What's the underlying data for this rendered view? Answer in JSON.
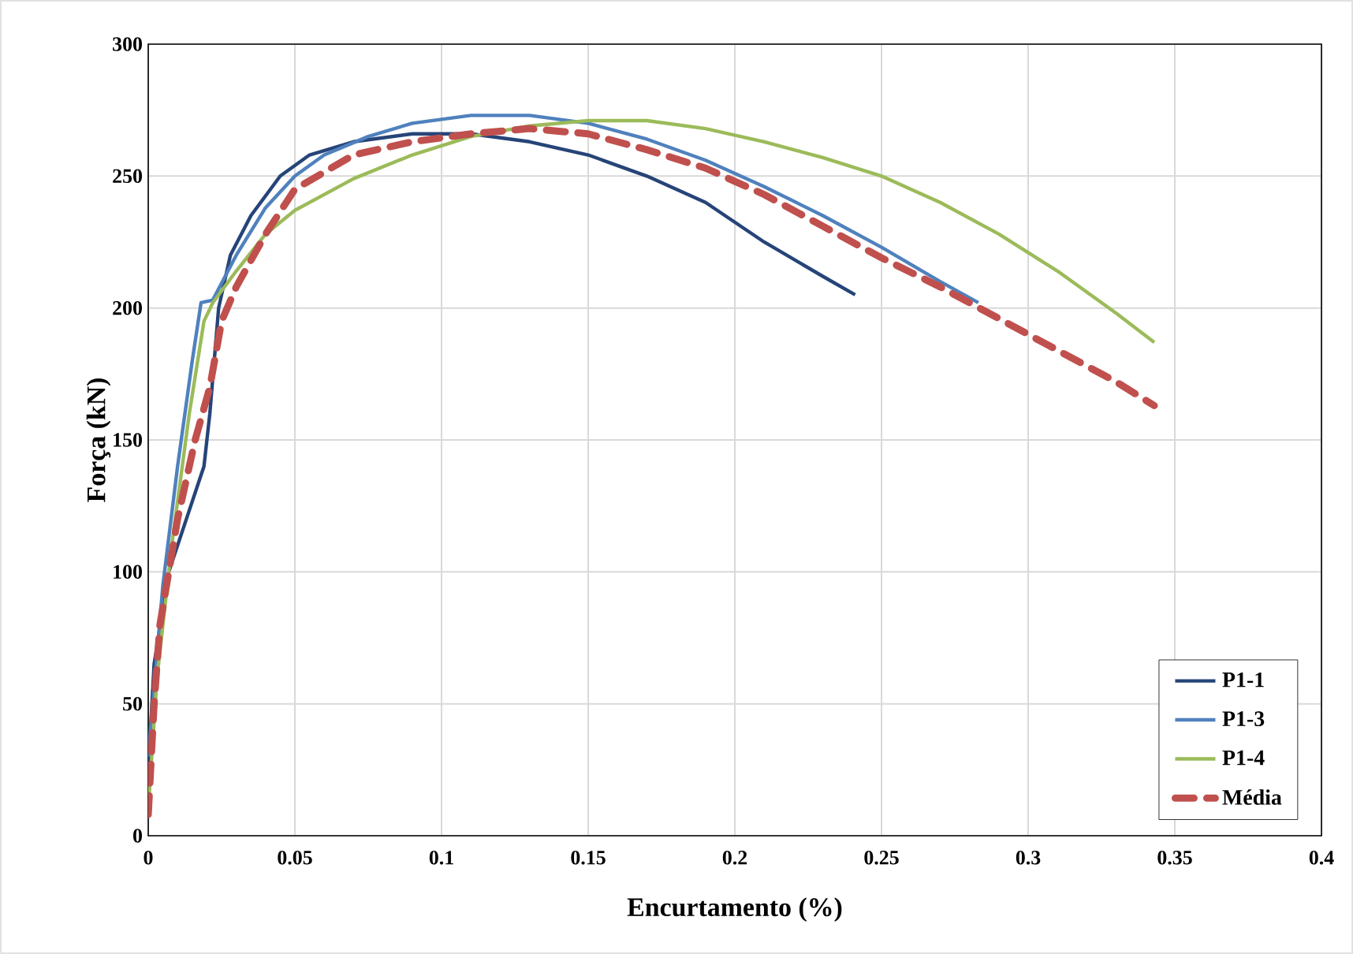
{
  "chart_data": {
    "type": "line",
    "xlabel": "Encurtamento (%)",
    "ylabel": "Força (kN)",
    "xlim": [
      0,
      0.4
    ],
    "ylim": [
      0,
      300
    ],
    "xticks": [
      0,
      0.05,
      0.1,
      0.15,
      0.2,
      0.25,
      0.3,
      0.35,
      0.4
    ],
    "yticks": [
      0,
      50,
      100,
      150,
      200,
      250,
      300
    ],
    "grid": true,
    "legend": "bottom right",
    "marker": "none",
    "series": [
      {
        "name": "P1-1",
        "color": "#264478",
        "line_style": "solid",
        "x": [
          0,
          0.002,
          0.007,
          0.013,
          0.019,
          0.021,
          0.024,
          0.028,
          0.035,
          0.045,
          0.055,
          0.07,
          0.09,
          0.11,
          0.13,
          0.15,
          0.17,
          0.19,
          0.21,
          0.23,
          0.241
        ],
        "values": [
          25,
          65,
          100,
          120,
          140,
          160,
          200,
          220,
          235,
          250,
          258,
          263,
          266,
          266,
          263,
          258,
          250,
          240,
          225,
          212,
          205
        ]
      },
      {
        "name": "P1-3",
        "color": "#4f81bd",
        "line_style": "solid",
        "x": [
          0,
          0.005,
          0.01,
          0.015,
          0.018,
          0.022,
          0.03,
          0.04,
          0.05,
          0.06,
          0.075,
          0.09,
          0.11,
          0.13,
          0.15,
          0.17,
          0.19,
          0.21,
          0.23,
          0.25,
          0.27,
          0.283
        ],
        "values": [
          30,
          95,
          140,
          180,
          202,
          203,
          220,
          238,
          250,
          258,
          265,
          270,
          273,
          273,
          270,
          264,
          256,
          246,
          235,
          223,
          210,
          202
        ]
      },
      {
        "name": "P1-4",
        "color": "#9bbb59",
        "line_style": "solid",
        "x": [
          0,
          0.003,
          0.008,
          0.014,
          0.019,
          0.022,
          0.03,
          0.04,
          0.05,
          0.07,
          0.09,
          0.11,
          0.13,
          0.15,
          0.17,
          0.19,
          0.21,
          0.23,
          0.25,
          0.27,
          0.29,
          0.31,
          0.33,
          0.343
        ],
        "values": [
          10,
          60,
          110,
          160,
          195,
          202,
          214,
          228,
          237,
          249,
          258,
          265,
          269,
          271,
          271,
          268,
          263,
          257,
          250,
          240,
          228,
          214,
          198,
          187
        ]
      },
      {
        "name": "Média",
        "color": "#c0504d",
        "line_style": "dashed",
        "x": [
          0,
          0.002,
          0.004,
          0.01,
          0.016,
          0.021,
          0.025,
          0.03,
          0.04,
          0.05,
          0.07,
          0.09,
          0.11,
          0.13,
          0.15,
          0.17,
          0.19,
          0.21,
          0.23,
          0.25,
          0.27,
          0.29,
          0.31,
          0.33,
          0.343
        ],
        "values": [
          8,
          50,
          80,
          120,
          150,
          170,
          195,
          208,
          228,
          245,
          258,
          263,
          266,
          268,
          266,
          260,
          253,
          243,
          231,
          219,
          208,
          196,
          184,
          172,
          163
        ]
      }
    ]
  }
}
